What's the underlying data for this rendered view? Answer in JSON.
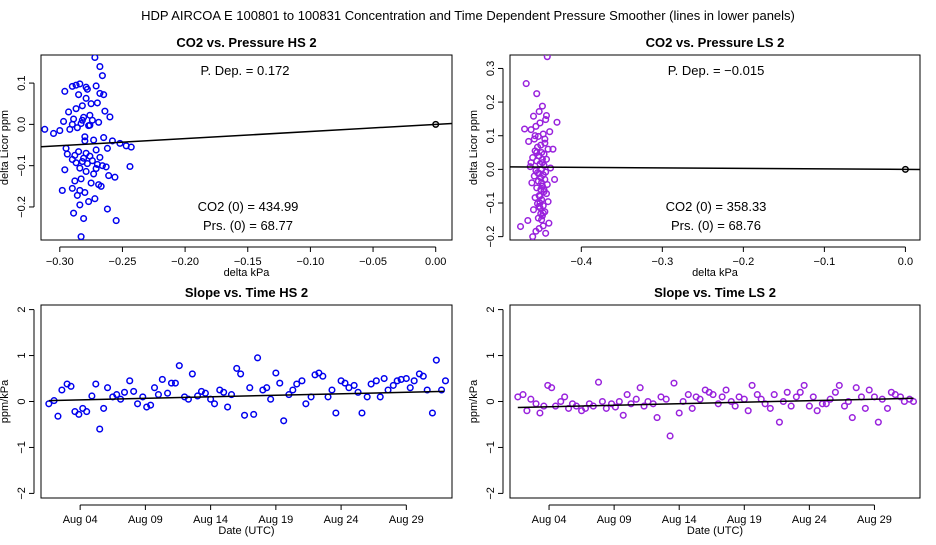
{
  "suptitle": "HDP   AIRCOA E   100801 to 100831   Concentration and Time Dependent Pressure Smoother (lines in lower panels)",
  "colors": {
    "hs": "#0000ee",
    "ls": "#9922dd",
    "line": "#000000"
  },
  "chart_data": [
    {
      "id": "co2-pressure-hs2",
      "type": "scatter",
      "title": "CO2 vs. Pressure HS 2",
      "xlabel": "delta kPa",
      "ylabel": "delta Licor ppm",
      "xlim": [
        -0.315,
        0.013
      ],
      "ylim": [
        -0.28,
        0.168
      ],
      "xticks": [
        -0.3,
        -0.25,
        -0.2,
        -0.15,
        -0.1,
        -0.05,
        0.0
      ],
      "xtick_labels": [
        "−0.30",
        "−0.25",
        "−0.20",
        "−0.15",
        "−0.10",
        "−0.05",
        "0.00"
      ],
      "yticks": [
        -0.2,
        -0.1,
        0.0,
        0.1
      ],
      "ytick_labels": [
        "−0.2",
        "−0.1",
        "0.0",
        "0.1"
      ],
      "color": "hs",
      "annotations": {
        "pdep": "P. Dep. =  0.172",
        "co2_0": "CO2 (0) =  434.99",
        "prs_0": "Prs. (0) =  68.77"
      },
      "fit_line": {
        "x": [
          -0.315,
          0.013
        ],
        "y": [
          -0.0542,
          0.0022
        ]
      },
      "ref_point": {
        "x": 0.0,
        "y": 0.0
      },
      "points": {
        "x": [
          -0.272,
          -0.268,
          -0.266,
          -0.271,
          -0.278,
          -0.284,
          -0.29,
          -0.296,
          -0.285,
          -0.279,
          -0.275,
          -0.282,
          -0.287,
          -0.293,
          -0.27,
          -0.264,
          -0.26,
          -0.276,
          -0.281,
          -0.289,
          -0.297,
          -0.274,
          -0.269,
          -0.283,
          -0.277,
          -0.286,
          -0.292,
          -0.3,
          -0.312,
          -0.305,
          -0.28,
          -0.273,
          -0.265,
          -0.258,
          -0.252,
          -0.247,
          -0.243,
          -0.262,
          -0.271,
          -0.285,
          -0.279,
          -0.294,
          -0.288,
          -0.276,
          -0.268,
          -0.281,
          -0.29,
          -0.274,
          -0.282,
          -0.287,
          -0.278,
          -0.27,
          -0.266,
          -0.263,
          -0.284,
          -0.296,
          -0.279,
          -0.273,
          -0.261,
          -0.256,
          -0.283,
          -0.288,
          -0.275,
          -0.269,
          -0.267,
          -0.29,
          -0.298,
          -0.28,
          -0.286,
          -0.272,
          -0.277,
          -0.284,
          -0.262,
          -0.289,
          -0.281,
          -0.283,
          -0.244,
          -0.255,
          -0.268,
          -0.279,
          -0.287,
          -0.265,
          -0.295,
          -0.284,
          -0.276,
          -0.29,
          -0.271,
          -0.28,
          -0.282
        ],
        "y": [
          0.162,
          0.14,
          0.118,
          0.093,
          0.085,
          0.098,
          0.092,
          0.08,
          0.072,
          0.063,
          0.05,
          0.045,
          0.038,
          0.03,
          0.052,
          0.032,
          0.018,
          0.022,
          0.017,
          0.013,
          0.007,
          0.01,
          0.005,
          0.002,
          -0.003,
          -0.008,
          -0.012,
          -0.015,
          -0.012,
          -0.022,
          -0.03,
          -0.038,
          -0.032,
          -0.04,
          -0.046,
          -0.052,
          -0.055,
          -0.058,
          -0.062,
          -0.066,
          -0.07,
          -0.072,
          -0.075,
          -0.077,
          -0.08,
          -0.082,
          -0.085,
          -0.088,
          -0.09,
          -0.093,
          -0.095,
          -0.097,
          -0.1,
          -0.103,
          -0.106,
          -0.11,
          -0.114,
          -0.12,
          -0.124,
          -0.128,
          -0.132,
          -0.137,
          -0.142,
          -0.146,
          -0.15,
          -0.155,
          -0.16,
          -0.165,
          -0.172,
          -0.18,
          -0.187,
          -0.195,
          -0.205,
          -0.215,
          -0.228,
          -0.272,
          -0.102,
          -0.233,
          0.075,
          0.09,
          0.095,
          0.072,
          -0.058,
          -0.16,
          -0.002,
          0.0,
          -0.107,
          -0.04,
          0.01
        ]
      }
    },
    {
      "id": "co2-pressure-ls2",
      "type": "scatter",
      "title": "CO2 vs. Pressure LS 2",
      "xlabel": "delta kPa",
      "ylabel": "delta Licor ppm",
      "xlim": [
        -0.488,
        0.018
      ],
      "ylim": [
        -0.21,
        0.34
      ],
      "xticks": [
        -0.4,
        -0.3,
        -0.2,
        -0.1,
        0.0
      ],
      "xtick_labels": [
        "−0.4",
        "−0.3",
        "−0.2",
        "−0.1",
        "0.0"
      ],
      "yticks": [
        -0.2,
        -0.1,
        0.0,
        0.1,
        0.2,
        0.3
      ],
      "ytick_labels": [
        "−0.2",
        "−0.1",
        "0.0",
        "0.1",
        "0.2",
        "0.3"
      ],
      "color": "ls",
      "annotations": {
        "pdep": "P. Dep. =  −0.015",
        "co2_0": "CO2 (0) =  358.33",
        "prs_0": "Prs. (0) =  68.76"
      },
      "fit_line": {
        "x": [
          -0.488,
          0.018
        ],
        "y": [
          0.0073,
          -0.0003
        ]
      },
      "ref_point": {
        "x": 0.0,
        "y": 0.0
      },
      "points": {
        "x": [
          -0.442,
          -0.468,
          -0.455,
          -0.448,
          -0.452,
          -0.459,
          -0.444,
          -0.451,
          -0.456,
          -0.462,
          -0.439,
          -0.447,
          -0.453,
          -0.458,
          -0.465,
          -0.445,
          -0.45,
          -0.454,
          -0.441,
          -0.457,
          -0.449,
          -0.446,
          -0.452,
          -0.46,
          -0.443,
          -0.455,
          -0.448,
          -0.451,
          -0.446,
          -0.463,
          -0.438,
          -0.449,
          -0.456,
          -0.444,
          -0.452,
          -0.447,
          -0.458,
          -0.45,
          -0.445,
          -0.453,
          -0.461,
          -0.442,
          -0.448,
          -0.455,
          -0.45,
          -0.446,
          -0.443,
          -0.452,
          -0.457,
          -0.449,
          -0.441,
          -0.454,
          -0.447,
          -0.451,
          -0.459,
          -0.445,
          -0.45,
          -0.448,
          -0.453,
          -0.466,
          -0.44,
          -0.447,
          -0.452,
          -0.456,
          -0.444,
          -0.449,
          -0.451,
          -0.446,
          -0.454,
          -0.448,
          -0.47,
          -0.43,
          -0.435,
          -0.46,
          -0.475,
          -0.433,
          -0.443,
          -0.457,
          -0.451,
          -0.447,
          -0.455,
          -0.449,
          -0.452,
          -0.462,
          -0.445
        ],
        "y": [
          0.335,
          0.255,
          0.225,
          0.188,
          0.172,
          0.158,
          0.148,
          0.138,
          0.128,
          0.118,
          0.112,
          0.105,
          0.098,
          0.09,
          0.083,
          0.078,
          0.072,
          0.066,
          0.06,
          0.055,
          0.05,
          0.045,
          0.04,
          0.035,
          0.03,
          0.025,
          0.02,
          0.016,
          0.012,
          0.008,
          0.004,
          0.0,
          -0.004,
          -0.008,
          -0.012,
          -0.016,
          -0.02,
          -0.025,
          -0.03,
          -0.035,
          -0.04,
          -0.045,
          -0.05,
          -0.055,
          -0.06,
          -0.066,
          -0.072,
          -0.078,
          -0.084,
          -0.09,
          -0.096,
          -0.102,
          -0.108,
          -0.114,
          -0.12,
          -0.126,
          -0.132,
          -0.138,
          -0.145,
          -0.152,
          -0.16,
          -0.168,
          -0.176,
          -0.184,
          -0.19,
          -0.15,
          -0.1,
          -0.06,
          -0.01,
          0.03,
          0.12,
          0.14,
          0.06,
          -0.2,
          -0.17,
          -0.03,
          0.16,
          0.1,
          -0.08,
          -0.13,
          0.05,
          -0.04,
          -0.11,
          0.02,
          0.09
        ]
      }
    },
    {
      "id": "slope-time-hs2",
      "type": "scatter",
      "title": "Slope vs. Time HS 2",
      "xlabel": "Date (UTC)",
      "ylabel": "ppm/kPa",
      "xlim": [
        0.0,
        31.5
      ],
      "ylim": [
        -2.1,
        2.1
      ],
      "xticks": [
        3.0,
        8.0,
        13.0,
        18.0,
        23.0,
        28.0
      ],
      "xtick_labels": [
        "Aug 04",
        "Aug 09",
        "Aug 14",
        "Aug 19",
        "Aug 24",
        "Aug 29"
      ],
      "yticks": [
        -2,
        -1,
        0,
        1,
        2
      ],
      "ytick_labels": [
        "−2",
        "−1",
        "0",
        "1",
        "2"
      ],
      "color": "hs",
      "fit_line": {
        "x": [
          0.6,
          30.9
        ],
        "y": [
          0.02,
          0.22
        ]
      },
      "points": {
        "x": [
          0.6,
          1.0,
          1.3,
          1.6,
          2.0,
          2.3,
          2.6,
          2.9,
          3.2,
          3.5,
          3.9,
          4.2,
          4.5,
          4.8,
          5.1,
          5.5,
          5.8,
          6.1,
          6.4,
          6.8,
          7.1,
          7.4,
          7.8,
          8.1,
          8.4,
          8.7,
          9.0,
          9.3,
          9.7,
          10.0,
          10.3,
          10.6,
          11.0,
          11.3,
          11.6,
          12.0,
          12.3,
          12.6,
          13.0,
          13.3,
          13.7,
          14.0,
          14.3,
          14.6,
          15.0,
          15.3,
          15.6,
          16.0,
          16.3,
          16.6,
          17.0,
          17.3,
          17.6,
          18.0,
          18.3,
          18.6,
          19.0,
          19.3,
          19.6,
          20.0,
          20.3,
          20.7,
          21.0,
          21.3,
          21.6,
          22.0,
          22.3,
          22.6,
          23.0,
          23.3,
          23.6,
          24.0,
          24.3,
          24.6,
          25.0,
          25.3,
          25.7,
          26.0,
          26.3,
          26.6,
          27.0,
          27.3,
          27.6,
          28.0,
          28.3,
          28.6,
          29.0,
          29.3,
          29.6,
          30.0,
          30.3,
          30.7,
          31.0
        ],
        "y": [
          -0.05,
          0.02,
          -0.32,
          0.25,
          0.38,
          0.33,
          -0.22,
          -0.28,
          -0.15,
          -0.22,
          0.12,
          0.38,
          -0.6,
          -0.15,
          0.3,
          0.1,
          0.15,
          0.05,
          0.2,
          0.45,
          0.22,
          -0.05,
          0.1,
          -0.12,
          -0.08,
          0.3,
          0.15,
          0.48,
          0.18,
          0.4,
          0.4,
          0.78,
          0.1,
          0.05,
          0.6,
          0.12,
          0.22,
          0.18,
          0.05,
          -0.05,
          0.25,
          0.2,
          -0.12,
          0.15,
          0.72,
          0.6,
          -0.3,
          0.3,
          -0.28,
          0.95,
          0.25,
          0.3,
          0.05,
          0.62,
          0.4,
          -0.42,
          0.15,
          0.25,
          0.38,
          0.45,
          -0.05,
          0.1,
          0.58,
          0.62,
          0.55,
          0.1,
          0.25,
          -0.25,
          0.45,
          0.4,
          0.3,
          0.35,
          0.2,
          -0.25,
          0.1,
          0.38,
          0.45,
          0.1,
          0.5,
          0.25,
          0.35,
          0.45,
          0.48,
          0.5,
          0.3,
          0.45,
          0.6,
          0.55,
          0.25,
          -0.25,
          0.9,
          0.25,
          0.45
        ]
      }
    },
    {
      "id": "slope-time-ls2",
      "type": "scatter",
      "title": "Slope vs. Time LS 2",
      "xlabel": "Date (UTC)",
      "ylabel": "ppm/kPa",
      "xlim": [
        0.0,
        31.5
      ],
      "ylim": [
        -2.1,
        2.1
      ],
      "xticks": [
        3.0,
        8.0,
        13.0,
        18.0,
        23.0,
        28.0
      ],
      "xtick_labels": [
        "Aug 04",
        "Aug 09",
        "Aug 14",
        "Aug 19",
        "Aug 24",
        "Aug 29"
      ],
      "yticks": [
        -2,
        -1,
        0,
        1,
        2
      ],
      "ytick_labels": [
        "−2",
        "−1",
        "0",
        "1",
        "2"
      ],
      "color": "ls",
      "fit_line": {
        "x": [
          0.6,
          31.0
        ],
        "y": [
          -0.13,
          0.07
        ]
      },
      "points": {
        "x": [
          0.6,
          1.0,
          1.3,
          1.6,
          2.0,
          2.3,
          2.6,
          2.9,
          3.2,
          3.5,
          3.9,
          4.2,
          4.5,
          4.8,
          5.1,
          5.5,
          5.8,
          6.1,
          6.4,
          6.8,
          7.1,
          7.4,
          7.8,
          8.1,
          8.4,
          8.7,
          9.0,
          9.3,
          9.7,
          10.0,
          10.3,
          10.6,
          11.0,
          11.3,
          11.6,
          12.0,
          12.3,
          12.6,
          13.0,
          13.3,
          13.7,
          14.0,
          14.3,
          14.6,
          15.0,
          15.3,
          15.6,
          16.0,
          16.3,
          16.6,
          17.0,
          17.3,
          17.6,
          18.0,
          18.3,
          18.6,
          19.0,
          19.3,
          19.6,
          20.0,
          20.3,
          20.7,
          21.0,
          21.3,
          21.6,
          22.0,
          22.3,
          22.6,
          23.0,
          23.3,
          23.6,
          24.0,
          24.3,
          24.6,
          25.0,
          25.3,
          25.7,
          26.0,
          26.3,
          26.6,
          27.0,
          27.3,
          27.6,
          28.0,
          28.3,
          28.6,
          29.0,
          29.3,
          29.6,
          30.0,
          30.3,
          30.7,
          31.0
        ],
        "y": [
          0.1,
          0.15,
          -0.2,
          0.05,
          -0.05,
          -0.25,
          -0.1,
          0.35,
          0.3,
          -0.1,
          0.0,
          0.1,
          -0.15,
          -0.05,
          -0.1,
          -0.2,
          -0.15,
          -0.05,
          -0.1,
          0.42,
          0.0,
          -0.15,
          -0.05,
          -0.12,
          0.0,
          -0.3,
          0.15,
          -0.05,
          0.05,
          0.3,
          -0.1,
          0.0,
          -0.05,
          -0.35,
          0.1,
          0.05,
          -0.75,
          0.4,
          -0.25,
          0.0,
          0.15,
          -0.15,
          0.1,
          0.05,
          0.25,
          0.2,
          0.15,
          -0.05,
          0.1,
          0.25,
          0.0,
          -0.1,
          0.1,
          0.05,
          -0.2,
          0.35,
          0.15,
          0.05,
          -0.05,
          -0.15,
          0.15,
          -0.45,
          0.0,
          0.2,
          -0.1,
          0.1,
          0.2,
          0.35,
          -0.1,
          0.1,
          -0.2,
          -0.05,
          -0.05,
          0.05,
          0.2,
          0.35,
          -0.1,
          0.0,
          -0.35,
          0.3,
          0.1,
          -0.15,
          0.25,
          0.1,
          -0.45,
          0.05,
          -0.15,
          0.2,
          0.15,
          0.1,
          0.0,
          0.05,
          0.0
        ]
      }
    }
  ]
}
